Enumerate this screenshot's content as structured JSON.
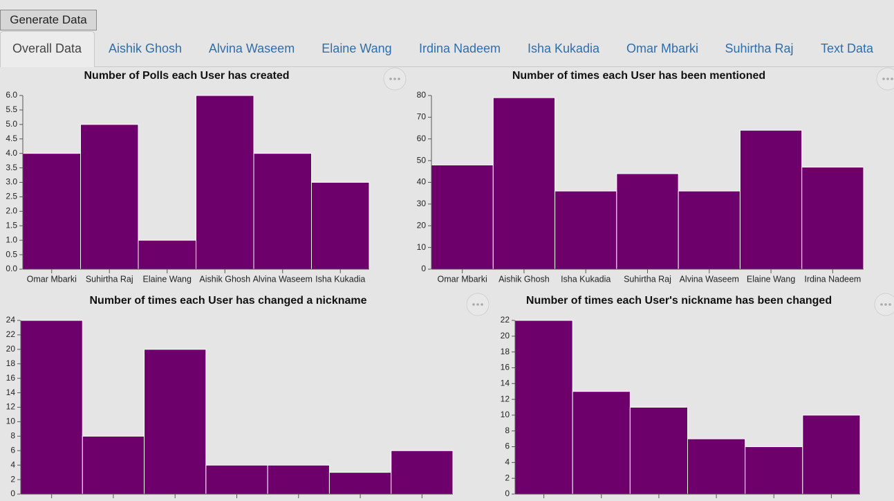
{
  "button": {
    "label": "Generate Data"
  },
  "tabs": [
    "Overall Data",
    "Aishik Ghosh",
    "Alvina Waseem",
    "Elaine Wang",
    "Irdina Nadeem",
    "Isha Kukadia",
    "Omar Mbarki",
    "Suhirtha Raj",
    "Text Data"
  ],
  "chart_data": [
    {
      "type": "bar",
      "title": "Number of Polls each User has created",
      "categories": [
        "Omar Mbarki",
        "Suhirtha Raj",
        "Elaine Wang",
        "Aishik Ghosh",
        "Alvina Waseem",
        "Isha Kukadia"
      ],
      "values": [
        4,
        5,
        1,
        6,
        4,
        3
      ],
      "color": "#6e006b",
      "ylim": [
        0,
        6
      ],
      "yticks": [
        {
          "value": 0,
          "label": "0.0"
        },
        {
          "value": 0.5,
          "label": "0.5"
        },
        {
          "value": 1,
          "label": "1.0"
        },
        {
          "value": 1.5,
          "label": "1.5"
        },
        {
          "value": 2,
          "label": "2.0"
        },
        {
          "value": 2.5,
          "label": "2.5"
        },
        {
          "value": 3,
          "label": "3.0"
        },
        {
          "value": 3.5,
          "label": "3.5"
        },
        {
          "value": 4,
          "label": "4.0"
        },
        {
          "value": 4.5,
          "label": "4.5"
        },
        {
          "value": 5,
          "label": "5.0"
        },
        {
          "value": 5.5,
          "label": "5.5"
        },
        {
          "value": 6,
          "label": "6.0"
        }
      ]
    },
    {
      "type": "bar",
      "title": "Number of times each User has been mentioned",
      "categories": [
        "Omar Mbarki",
        "Aishik Ghosh",
        "Isha Kukadia",
        "Suhirtha Raj",
        "Alvina Waseem",
        "Elaine Wang",
        "Irdina Nadeem"
      ],
      "values": [
        48,
        79,
        36,
        44,
        36,
        64,
        47
      ],
      "color": "#6e006b",
      "ylim": [
        0,
        80
      ],
      "yticks": [
        0,
        10,
        20,
        30,
        40,
        50,
        60,
        70,
        80
      ]
    },
    {
      "type": "bar",
      "title": "Number of times each User has changed a nickname",
      "categories": [
        null,
        null,
        null,
        null,
        null,
        null,
        null
      ],
      "values": [
        24,
        8,
        20,
        4,
        4,
        3,
        6
      ],
      "color": "#6e006b",
      "ylim": [
        0,
        24
      ],
      "yticks": [
        0,
        2,
        4,
        6,
        8,
        10,
        12,
        14,
        16,
        18,
        20,
        22,
        24
      ]
    },
    {
      "type": "bar",
      "title": "Number of times each User's nickname has been changed",
      "categories": [
        null,
        null,
        null,
        null,
        null,
        null
      ],
      "values": [
        22,
        13,
        11,
        7,
        6,
        10
      ],
      "color": "#6e006b",
      "ylim": [
        0,
        22
      ],
      "yticks": [
        0,
        2,
        4,
        6,
        8,
        10,
        12,
        14,
        16,
        18,
        20,
        22
      ]
    }
  ]
}
